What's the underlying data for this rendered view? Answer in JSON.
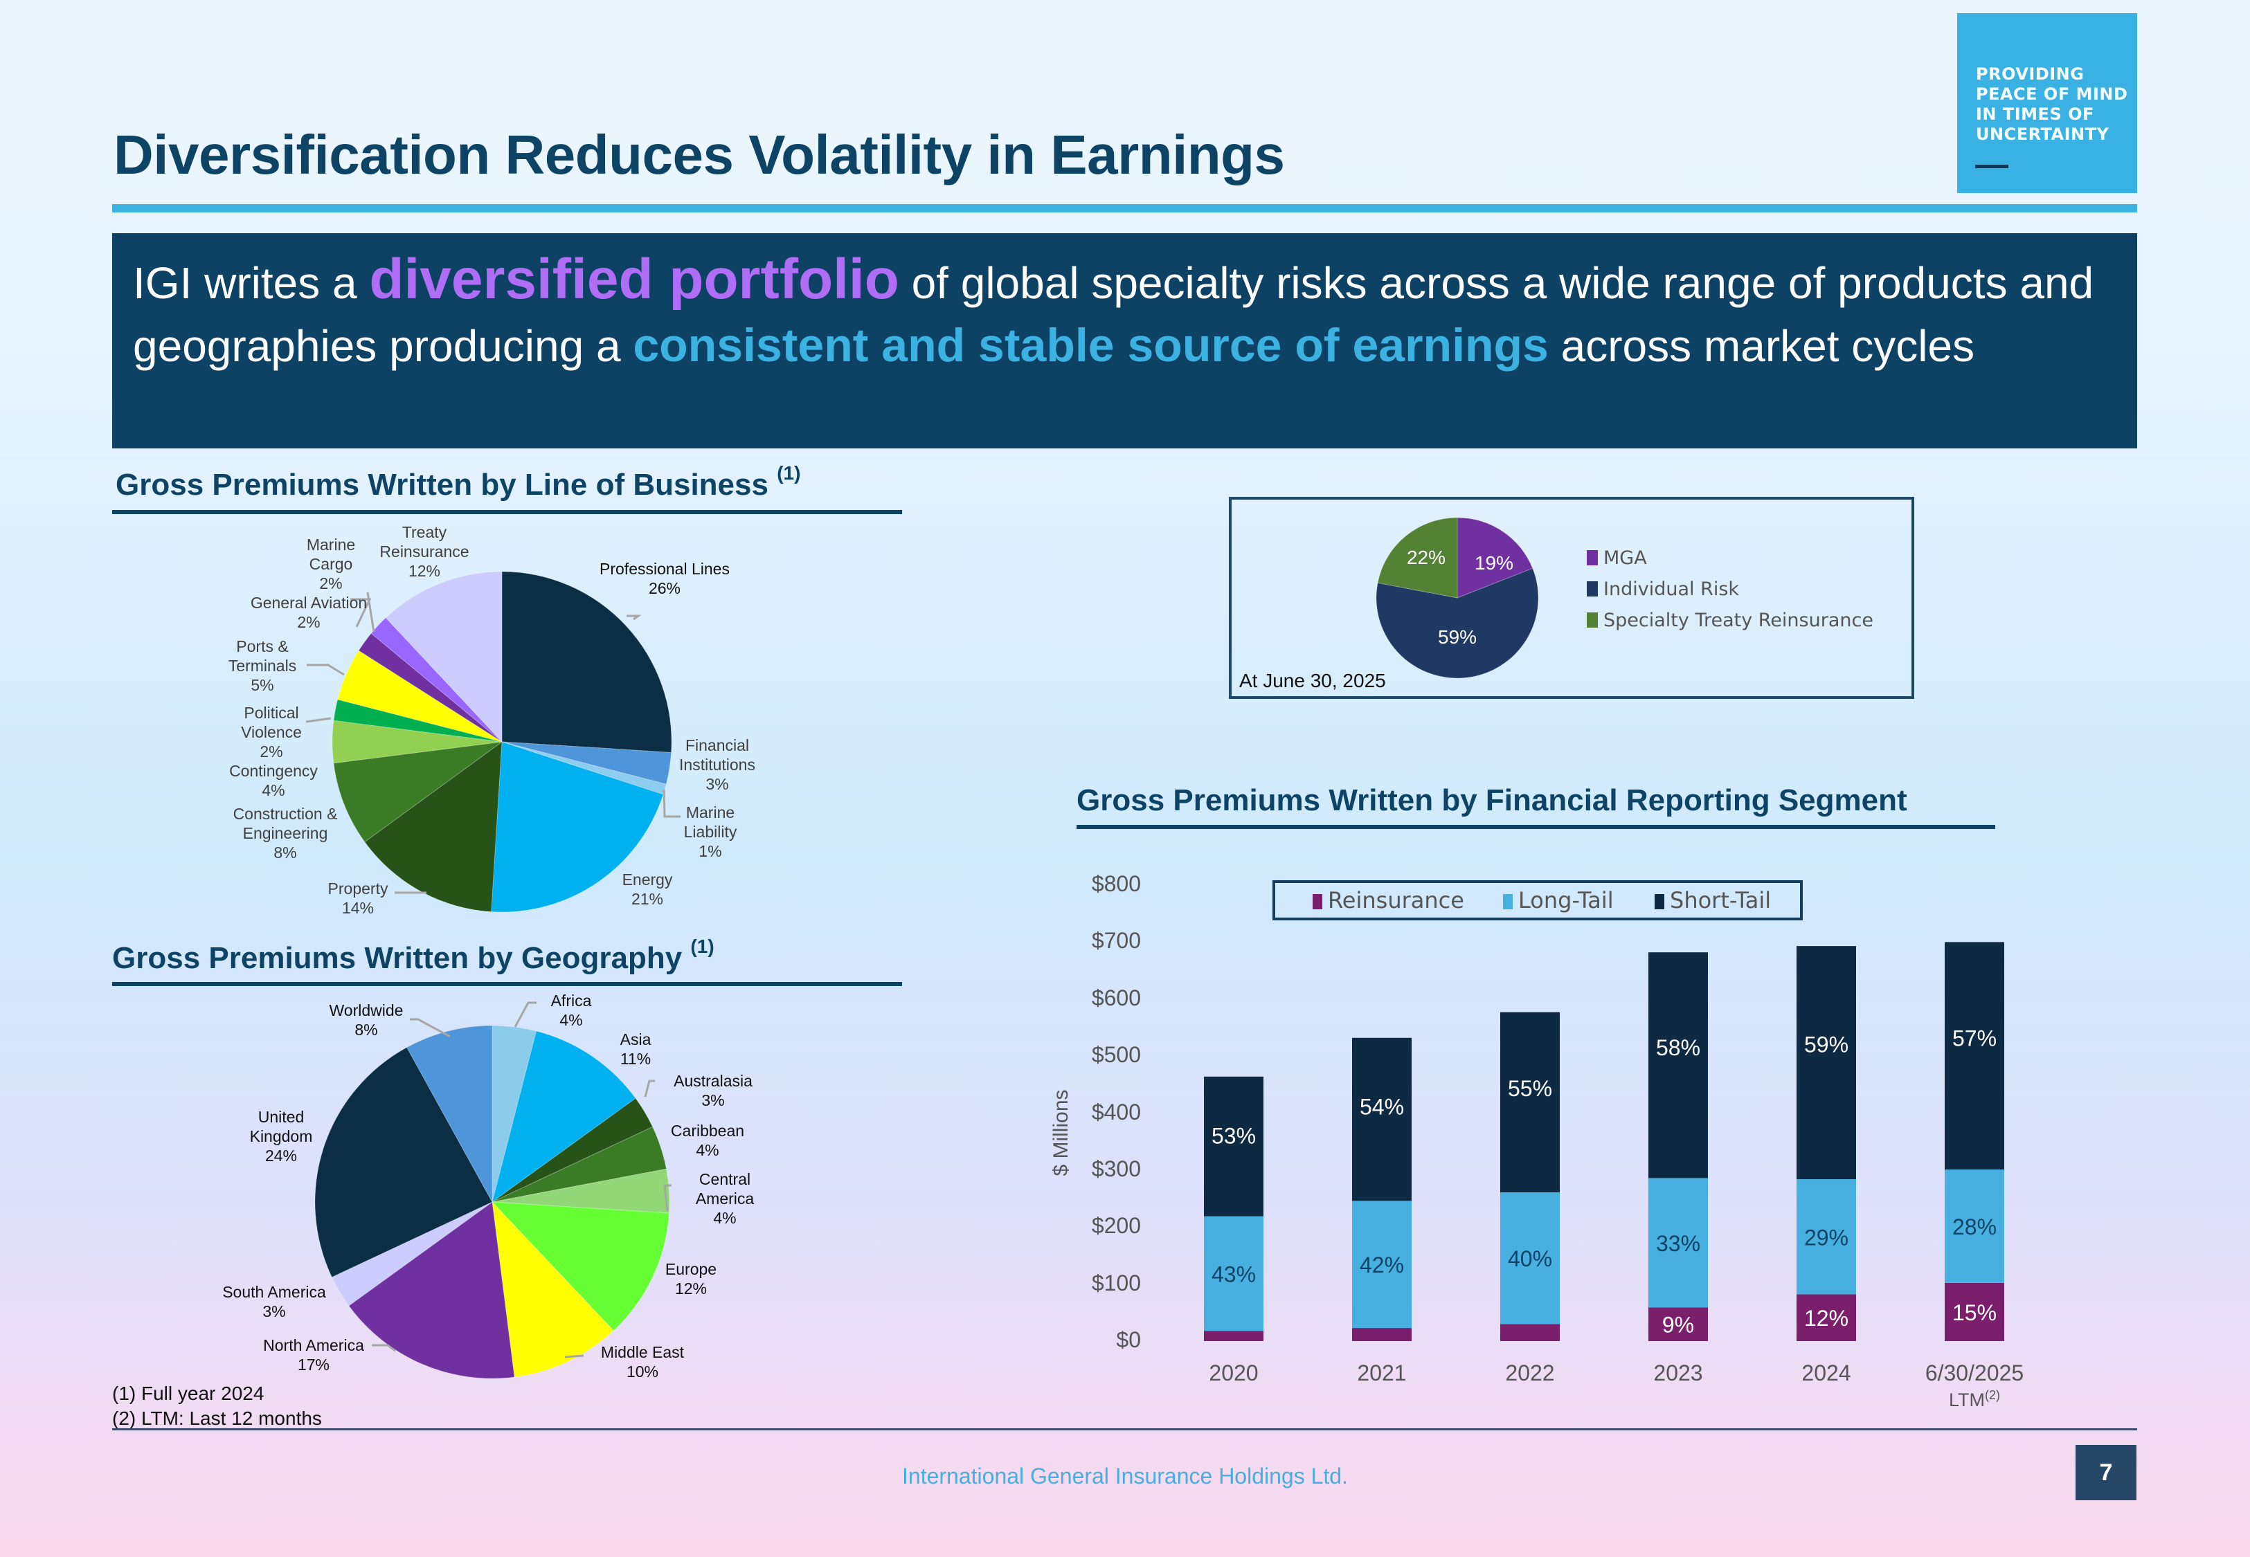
{
  "logo": {
    "lines": [
      "PROVIDING",
      "PEACE OF MIND",
      "IN TIMES OF",
      "UNCERTAINTY"
    ]
  },
  "title": "Diversification Reduces Volatility in Earnings",
  "banner": {
    "part1": "IGI writes a ",
    "highlight1": "diversified portfolio",
    "part2": " of global specialty risks across a wide range of products and geographies producing a ",
    "highlight2": "consistent and stable source of earnings",
    "part3": " across market cycles"
  },
  "colors": {
    "title": "#0d4466",
    "accent_blue": "#3cb2e2",
    "banner_bg": "#0e4265",
    "highlight_purple": "#b06ef6",
    "reinsurance": "#7b1f6d",
    "long_tail": "#47b0e0",
    "short_tail": "#0e2942"
  },
  "sections": {
    "line_of_business": {
      "title": "Gross Premiums Written by Line of Business",
      "note": "(1)"
    },
    "geography": {
      "title": "Gross Premiums Written by Geography",
      "note": "(1)"
    },
    "segment": {
      "title": "Gross Premiums Written by Financial Reporting Segment"
    }
  },
  "chart_data": [
    {
      "id": "line_of_business",
      "type": "pie",
      "title": "Gross Premiums Written by Line of Business",
      "start_angle": "12 o'clock, clockwise",
      "slices": [
        {
          "label": "Professional Lines",
          "value": 26,
          "display": "26%",
          "color": "#0b2e44"
        },
        {
          "label": "Financial Institutions",
          "value": 3,
          "display": "3%",
          "color": "#4f95d9"
        },
        {
          "label": "Marine Liability",
          "value": 1,
          "display": "1%",
          "color": "#8dcdf0"
        },
        {
          "label": "Energy",
          "value": 21,
          "display": "21%",
          "color": "#00b0ef"
        },
        {
          "label": "Property",
          "value": 14,
          "display": "14%",
          "color": "#275318"
        },
        {
          "label": "Construction & Engineering",
          "value": 8,
          "display": "8%",
          "color": "#3a7b25"
        },
        {
          "label": "Contingency",
          "value": 4,
          "display": "4%",
          "color": "#92d051"
        },
        {
          "label": "Political Violence",
          "value": 2,
          "display": "2%",
          "color": "#00af50"
        },
        {
          "label": "Ports & Terminals",
          "value": 5,
          "display": "5%",
          "color": "#ffff00"
        },
        {
          "label": "General Aviation",
          "value": 2,
          "display": "2%",
          "color": "#7030a0"
        },
        {
          "label": "Marine Cargo",
          "value": 2,
          "display": "2%",
          "color": "#9966ff"
        },
        {
          "label": "Treaty Reinsurance",
          "value": 12,
          "display": "12%",
          "color": "#ccccff"
        }
      ]
    },
    {
      "id": "geography",
      "type": "pie",
      "title": "Gross Premiums Written by Geography",
      "start_angle": "12 o'clock, clockwise",
      "slices": [
        {
          "label": "Africa",
          "value": 4,
          "display": "4%",
          "color": "#8dcbeb"
        },
        {
          "label": "Asia",
          "value": 11,
          "display": "11%",
          "color": "#00b0ef"
        },
        {
          "label": "Australasia",
          "value": 3,
          "display": "3%",
          "color": "#275318"
        },
        {
          "label": "Caribbean",
          "value": 4,
          "display": "4%",
          "color": "#3a7b25"
        },
        {
          "label": "Central America",
          "value": 4,
          "display": "4%",
          "color": "#92d878"
        },
        {
          "label": "Europe",
          "value": 12,
          "display": "12%",
          "color": "#66ff33"
        },
        {
          "label": "Middle East",
          "value": 10,
          "display": "10%",
          "color": "#ffff00"
        },
        {
          "label": "North America",
          "value": 17,
          "display": "17%",
          "color": "#7030a0"
        },
        {
          "label": "South America",
          "value": 3,
          "display": "3%",
          "color": "#ccccff"
        },
        {
          "label": "United Kingdom",
          "value": 24,
          "display": "24%",
          "color": "#0b2e44"
        },
        {
          "label": "Worldwide",
          "value": 8,
          "display": "8%",
          "color": "#4f95d9"
        }
      ]
    },
    {
      "id": "business_mix",
      "type": "pie",
      "title": "",
      "annotation": "At June 30, 2025",
      "legend_position": "right",
      "slices": [
        {
          "label": "MGA",
          "value": 19,
          "display": "19%",
          "color": "#7030a0"
        },
        {
          "label": "Individual Risk",
          "value": 59,
          "display": "59%",
          "color": "#1f3864"
        },
        {
          "label": "Specialty Treaty Reinsurance",
          "value": 22,
          "display": "22%",
          "color": "#548235"
        }
      ]
    },
    {
      "id": "segment",
      "type": "bar",
      "stacked": true,
      "title": "Gross Premiums Written by Financial Reporting Segment",
      "xlabel": "",
      "ylabel": "$ Millions",
      "ylim": [
        0,
        800
      ],
      "yticks": [
        "$0",
        "$100",
        "$200",
        "$300",
        "$400",
        "$500",
        "$600",
        "$700",
        "$800"
      ],
      "grid": false,
      "legend_position": "top",
      "categories": [
        "2020",
        "2021",
        "2022",
        "2023",
        "2024",
        "6/30/2025"
      ],
      "category_sublabels": [
        "",
        "",
        "",
        "",
        "",
        "LTM"
      ],
      "category_sublabel_note": "(2)",
      "series": [
        {
          "name": "Reinsurance",
          "color": "#7b1f6d",
          "values": [
            18,
            23,
            30,
            59,
            82,
            102
          ],
          "labels": [
            "",
            "",
            "",
            "9%",
            "12%",
            "15%"
          ]
        },
        {
          "name": "Long-Tail",
          "color": "#47b0e0",
          "values": [
            201,
            223,
            231,
            227,
            202,
            199
          ],
          "labels": [
            "43%",
            "42%",
            "40%",
            "33%",
            "29%",
            "28%"
          ]
        },
        {
          "name": "Short-Tail",
          "color": "#0e2942",
          "values": [
            245,
            286,
            316,
            396,
            409,
            399
          ],
          "labels": [
            "53%",
            "54%",
            "55%",
            "58%",
            "59%",
            "57%"
          ]
        }
      ]
    }
  ],
  "footnotes": [
    "(1) Full year 2024",
    "(2) LTM: Last 12 months"
  ],
  "footer": {
    "company": "International General Insurance Holdings Ltd.",
    "page": "7"
  }
}
